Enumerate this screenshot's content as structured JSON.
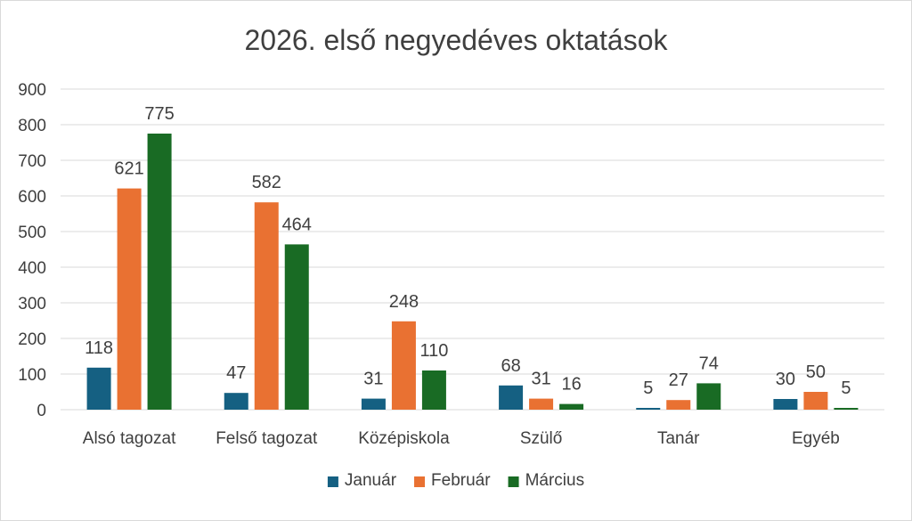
{
  "chart_data": {
    "type": "bar",
    "title": "2026. első negyedéves oktatások",
    "categories": [
      "Alsó tagozat",
      "Felső tagozat",
      "Középiskola",
      "Szülő",
      "Tanár",
      "Egyéb"
    ],
    "series": [
      {
        "name": "Január",
        "color": "#156082",
        "values": [
          118,
          47,
          31,
          68,
          5,
          30
        ]
      },
      {
        "name": "Február",
        "color": "#e97132",
        "values": [
          621,
          582,
          248,
          31,
          27,
          50
        ]
      },
      {
        "name": "Március",
        "color": "#196b24",
        "values": [
          775,
          464,
          110,
          16,
          74,
          5
        ]
      }
    ],
    "ylim": [
      0,
      900
    ],
    "yticks": [
      0,
      100,
      200,
      300,
      400,
      500,
      600,
      700,
      800,
      900
    ],
    "grid": true,
    "legend_position": "bottom",
    "data_labels": true
  }
}
